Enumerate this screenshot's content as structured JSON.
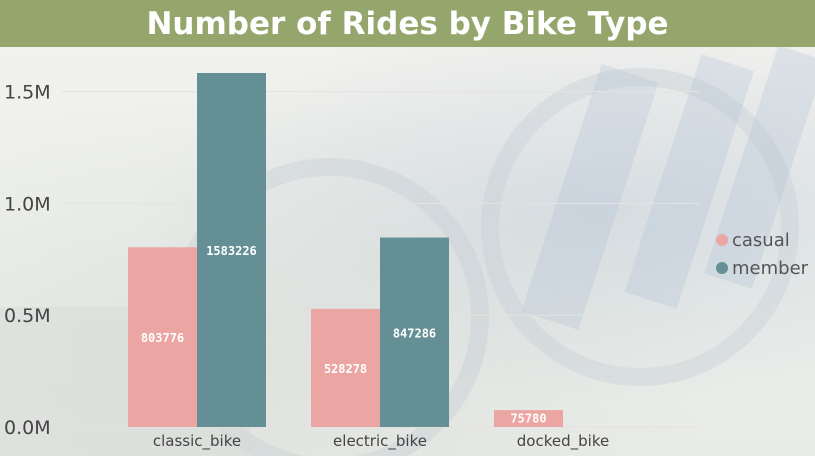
{
  "chart_data": {
    "type": "bar",
    "title": "Number of Rides by Bike Type",
    "categories": [
      "classic_bike",
      "electric_bike",
      "docked_bike"
    ],
    "series": [
      {
        "name": "casual",
        "values": [
          803776,
          528278,
          75780
        ],
        "color": "#eba6a3"
      },
      {
        "name": "member",
        "values": [
          1583226,
          847286,
          0
        ],
        "color": "#638f95"
      }
    ],
    "y_ticks": [
      {
        "value": 0,
        "label": "0.0M"
      },
      {
        "value": 500000,
        "label": "0.5M"
      },
      {
        "value": 1000000,
        "label": "1.0M"
      },
      {
        "value": 1500000,
        "label": "1.5M"
      }
    ],
    "xlabel": "",
    "ylabel": "",
    "ylim": [
      0,
      1583226
    ],
    "legend_position": "right",
    "grid": true
  },
  "colors": {
    "title_bar": "#95a66c",
    "title_text": "#ffffff",
    "tick_text": "#444444",
    "data_label": "#ffffff"
  }
}
